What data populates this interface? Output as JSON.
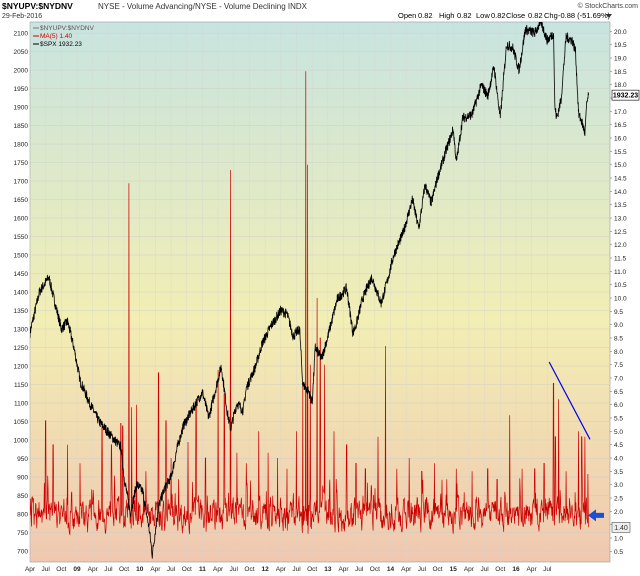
{
  "header": {
    "symbol": "$NYUPV:$NYDNV",
    "description": "NYSE - Volume Advancing/NYSE - Volume Declining INDX",
    "date": "29-Feb-2016",
    "source": "© StockCharts.com",
    "open_label": "Open",
    "open_value": "0.82",
    "high_label": "High",
    "high_value": "0.82",
    "low_label": "Low",
    "low_value": "0.82",
    "close_label": "Close",
    "close_value": "0.82",
    "chg_label": "Chg",
    "chg_value": "-0.88 (-51.69%)"
  },
  "legend": [
    {
      "text": "$NYUPV:$NYDNV",
      "color": "#777777"
    },
    {
      "text": "MA(5) 1.40",
      "color": "#cc0000"
    },
    {
      "text": "$SPX 1932.23",
      "color": "#000000"
    }
  ],
  "colors": {
    "bg_top": "#c8e4e0",
    "bg_mid": "#f2eeb4",
    "bg_bottom": "#f0c8b0",
    "spx": "#000000",
    "ratio": "#cc0000",
    "trendline": "#0000ee",
    "arrow": "#1a4fd6"
  },
  "chart_data": {
    "type": "line",
    "x_range": [
      "2007-04",
      "2016-03"
    ],
    "x_tick_labels": [
      "Apr",
      "Jul",
      "Oct",
      "09",
      "Apr",
      "Jul",
      "Oct",
      "10",
      "Apr",
      "Jul",
      "Oct",
      "11",
      "Apr",
      "Jul",
      "Oct",
      "12",
      "Apr",
      "Jul",
      "Oct",
      "13",
      "Apr",
      "Jul",
      "Oct",
      "14",
      "Apr",
      "Jul",
      "Oct",
      "15",
      "Apr",
      "Jul",
      "Oct",
      "16",
      "Apr",
      "Jul"
    ],
    "left_axis": {
      "min": 670,
      "max": 2130,
      "ticks": [
        700,
        750,
        800,
        850,
        900,
        950,
        1000,
        1050,
        1100,
        1150,
        1200,
        1250,
        1300,
        1350,
        1400,
        1450,
        1500,
        1550,
        1600,
        1650,
        1700,
        1750,
        1800,
        1850,
        1900,
        1950,
        2000,
        2050,
        2100
      ]
    },
    "right_axis": {
      "min": 0.1,
      "max": 20.35,
      "ticks": [
        "0.5",
        "1.0",
        "1.5",
        "2.0",
        "2.5",
        "3.0",
        "3.5",
        "4.0",
        "4.5",
        "5.0",
        "5.5",
        "6.0",
        "6.5",
        "7.0",
        "7.5",
        "8.0",
        "8.5",
        "9.0",
        "9.5",
        "10.0",
        "10.5",
        "11.0",
        "11.5",
        "12.0",
        "12.5",
        "13.0",
        "13.5",
        "14.0",
        "14.5",
        "15.0",
        "15.5",
        "16.0",
        "16.5",
        "17.0",
        "17.5",
        "18.0",
        "18.5",
        "19.0",
        "19.5",
        "20.0"
      ]
    },
    "series": [
      {
        "name": "$SPX",
        "axis": "left",
        "last_value_label": "1932.23",
        "points": [
          [
            2007.25,
            1290
          ],
          [
            2007.4,
            1400
          ],
          [
            2007.55,
            1440
          ],
          [
            2007.62,
            1390
          ],
          [
            2007.75,
            1300
          ],
          [
            2007.85,
            1320
          ],
          [
            2007.95,
            1250
          ],
          [
            2008.05,
            1160
          ],
          [
            2008.2,
            1100
          ],
          [
            2008.35,
            1050
          ],
          [
            2008.5,
            1020
          ],
          [
            2008.6,
            1000
          ],
          [
            2008.7,
            980
          ],
          [
            2008.75,
            900
          ],
          [
            2008.85,
            800
          ],
          [
            2008.95,
            880
          ],
          [
            2009.05,
            860
          ],
          [
            2009.15,
            760
          ],
          [
            2009.2,
            690
          ],
          [
            2009.3,
            820
          ],
          [
            2009.4,
            870
          ],
          [
            2009.5,
            900
          ],
          [
            2009.6,
            980
          ],
          [
            2009.7,
            1040
          ],
          [
            2009.8,
            1070
          ],
          [
            2009.9,
            1100
          ],
          [
            2010.0,
            1130
          ],
          [
            2010.1,
            1060
          ],
          [
            2010.2,
            1130
          ],
          [
            2010.3,
            1200
          ],
          [
            2010.4,
            1070
          ],
          [
            2010.45,
            1030
          ],
          [
            2010.55,
            1100
          ],
          [
            2010.65,
            1080
          ],
          [
            2010.7,
            1140
          ],
          [
            2010.85,
            1200
          ],
          [
            2010.95,
            1260
          ],
          [
            2011.1,
            1310
          ],
          [
            2011.25,
            1350
          ],
          [
            2011.35,
            1340
          ],
          [
            2011.45,
            1280
          ],
          [
            2011.55,
            1300
          ],
          [
            2011.6,
            1150
          ],
          [
            2011.7,
            1130
          ],
          [
            2011.75,
            1100
          ],
          [
            2011.8,
            1250
          ],
          [
            2011.9,
            1220
          ],
          [
            2012.0,
            1280
          ],
          [
            2012.15,
            1380
          ],
          [
            2012.3,
            1410
          ],
          [
            2012.4,
            1290
          ],
          [
            2012.45,
            1310
          ],
          [
            2012.55,
            1380
          ],
          [
            2012.7,
            1440
          ],
          [
            2012.85,
            1370
          ],
          [
            2012.95,
            1430
          ],
          [
            2013.05,
            1500
          ],
          [
            2013.2,
            1560
          ],
          [
            2013.35,
            1650
          ],
          [
            2013.45,
            1570
          ],
          [
            2013.55,
            1690
          ],
          [
            2013.65,
            1640
          ],
          [
            2013.75,
            1710
          ],
          [
            2013.9,
            1790
          ],
          [
            2014.0,
            1840
          ],
          [
            2014.05,
            1750
          ],
          [
            2014.15,
            1870
          ],
          [
            2014.3,
            1880
          ],
          [
            2014.45,
            1960
          ],
          [
            2014.55,
            1930
          ],
          [
            2014.65,
            2010
          ],
          [
            2014.75,
            1870
          ],
          [
            2014.85,
            2070
          ],
          [
            2014.95,
            2060
          ],
          [
            2015.05,
            2000
          ],
          [
            2015.15,
            2110
          ],
          [
            2015.3,
            2100
          ],
          [
            2015.4,
            2130
          ],
          [
            2015.5,
            2080
          ],
          [
            2015.6,
            2100
          ],
          [
            2015.62,
            1900
          ],
          [
            2015.65,
            1870
          ],
          [
            2015.72,
            1920
          ],
          [
            2015.8,
            2090
          ],
          [
            2015.9,
            2080
          ],
          [
            2015.95,
            2050
          ],
          [
            2016.0,
            1880
          ],
          [
            2016.05,
            1860
          ],
          [
            2016.1,
            1830
          ],
          [
            2016.13,
            1910
          ],
          [
            2016.16,
            1932.23
          ]
        ]
      },
      {
        "name": "MA(5)",
        "axis": "right",
        "last_value_label": "1.40",
        "spikes": [
          [
            2007.5,
            5.4
          ],
          [
            2007.62,
            4.5
          ],
          [
            2007.85,
            4.5
          ],
          [
            2008.05,
            3.8
          ],
          [
            2008.4,
            5.2
          ],
          [
            2008.55,
            4.5
          ],
          [
            2008.7,
            5.3
          ],
          [
            2008.73,
            5.2
          ],
          [
            2008.83,
            14.3
          ],
          [
            2008.87,
            5.9
          ],
          [
            2008.95,
            6.0
          ],
          [
            2009.1,
            3.5
          ],
          [
            2009.3,
            7.2
          ],
          [
            2009.42,
            5.4
          ],
          [
            2009.5,
            4.0
          ],
          [
            2009.62,
            3.2
          ],
          [
            2009.77,
            4.6
          ],
          [
            2009.9,
            6.2
          ],
          [
            2010.05,
            4.0
          ],
          [
            2010.25,
            7.3
          ],
          [
            2010.35,
            6.4
          ],
          [
            2010.45,
            14.8
          ],
          [
            2010.55,
            4.2
          ],
          [
            2010.7,
            3.8
          ],
          [
            2010.9,
            5.0
          ],
          [
            2011.05,
            4.2
          ],
          [
            2011.2,
            4.0
          ],
          [
            2011.35,
            3.6
          ],
          [
            2011.5,
            5.0
          ],
          [
            2011.6,
            6.8
          ],
          [
            2011.65,
            18.5
          ],
          [
            2011.68,
            15.0
          ],
          [
            2011.72,
            7.5
          ],
          [
            2011.83,
            10.0
          ],
          [
            2011.88,
            8.5
          ],
          [
            2011.95,
            7.5
          ],
          [
            2012.1,
            5.0
          ],
          [
            2012.3,
            4.5
          ],
          [
            2012.45,
            3.8
          ],
          [
            2012.6,
            3.6
          ],
          [
            2012.8,
            4.8
          ],
          [
            2012.92,
            8.2
          ],
          [
            2013.1,
            3.6
          ],
          [
            2013.3,
            4.0
          ],
          [
            2013.5,
            3.5
          ],
          [
            2013.7,
            3.8
          ],
          [
            2013.9,
            3.2
          ],
          [
            2014.05,
            3.6
          ],
          [
            2014.3,
            3.5
          ],
          [
            2014.55,
            3.6
          ],
          [
            2014.7,
            3.2
          ],
          [
            2014.9,
            5.6
          ],
          [
            2015.1,
            3.6
          ],
          [
            2015.3,
            3.6
          ],
          [
            2015.45,
            3.8
          ],
          [
            2015.6,
            6.8
          ],
          [
            2015.63,
            4.8
          ],
          [
            2015.68,
            6.2
          ],
          [
            2015.8,
            3.5
          ],
          [
            2016.0,
            5.0
          ],
          [
            2016.05,
            4.8
          ],
          [
            2016.1,
            4.8
          ],
          [
            2016.15,
            3.4
          ]
        ]
      }
    ],
    "annotations": [
      {
        "type": "trendline",
        "from": [
          2015.53,
          7.6
        ],
        "to": [
          2016.18,
          4.7
        ]
      },
      {
        "type": "arrow",
        "at_value": 1.4,
        "direction": "left"
      }
    ]
  }
}
